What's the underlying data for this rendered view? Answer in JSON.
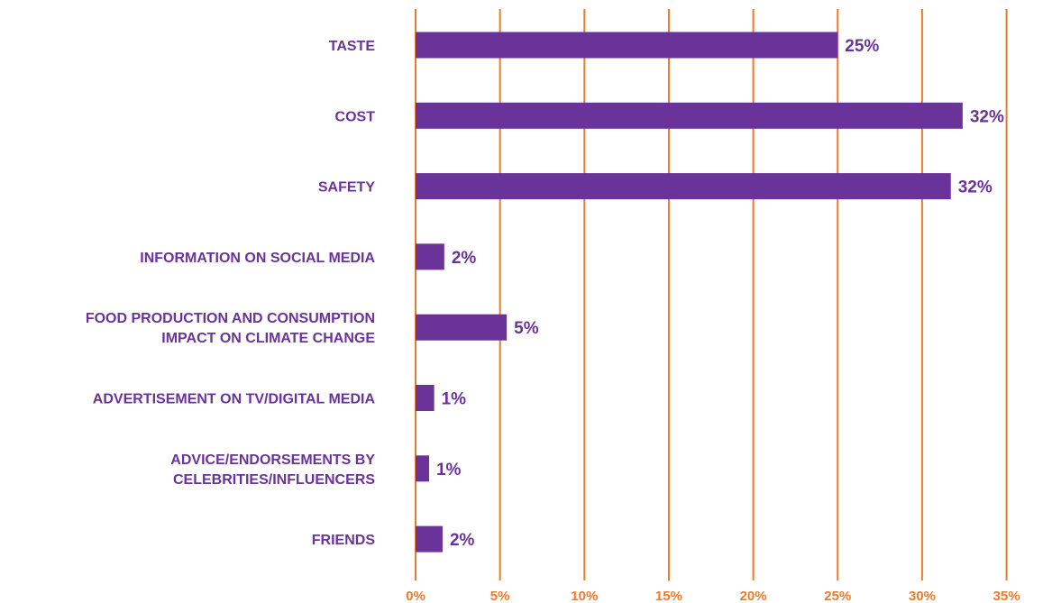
{
  "chart_data": {
    "type": "bar",
    "orientation": "horizontal",
    "title": "",
    "xlabel": "",
    "ylabel": "",
    "categories": [
      [
        "TASTE"
      ],
      [
        "COST"
      ],
      [
        "SAFETY"
      ],
      [
        "INFORMATION ON SOCIAL MEDIA"
      ],
      [
        "FOOD PRODUCTION AND CONSUMPTION",
        "IMPACT ON CLIMATE CHANGE"
      ],
      [
        "ADVERTISEMENT ON TV/DIGITAL MEDIA"
      ],
      [
        "ADVICE/ENDORSEMENTS BY",
        "CELEBRITIES/INFLUENCERS"
      ],
      [
        "FRIENDS"
      ]
    ],
    "values": [
      25,
      32,
      32,
      2,
      5,
      1,
      1,
      2
    ],
    "bar_values_precise": [
      25,
      32.4,
      31.7,
      1.7,
      5.4,
      1.1,
      0.8,
      1.6
    ],
    "data_labels": [
      "25%",
      "32%",
      "32%",
      "2%",
      "5%",
      "1%",
      "1%",
      "2%"
    ],
    "xlim": [
      0,
      35
    ],
    "xticks": [
      0,
      5,
      10,
      15,
      20,
      25,
      30,
      35
    ],
    "xtick_labels": [
      "0%",
      "5%",
      "10%",
      "15%",
      "20%",
      "25%",
      "30%",
      "35%"
    ],
    "grid": "vertical",
    "legend": "none",
    "colors": {
      "bar": "#6a3399",
      "grid": "#ef7a2a",
      "tick_label": "#ef7a2a",
      "category_label": "#6a3399"
    }
  }
}
